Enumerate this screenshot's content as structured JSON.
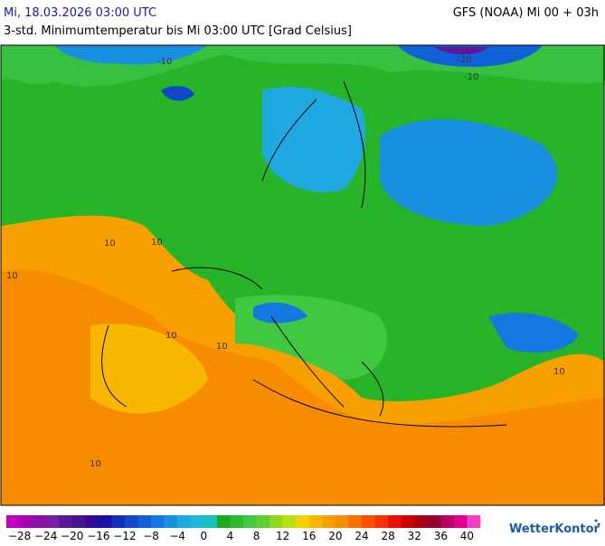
{
  "header": {
    "datetime": "Mi, 18.03.2026 03:00 UTC",
    "model": "GFS (NOAA) Mi 00 + 03h",
    "title": "3-std. Minimumtemperatur bis Mi 03:00 UTC [Grad Celsius]"
  },
  "map": {
    "contour_labels": [
      "-10",
      "-20",
      "-10",
      "10",
      "10",
      "10",
      "10",
      "10",
      "10",
      "10"
    ]
  },
  "legend": {
    "labels": [
      "−28",
      "−24",
      "−20",
      "−16",
      "−12",
      "−8",
      "−4",
      "0",
      "4",
      "8",
      "12",
      "16",
      "20",
      "24",
      "28",
      "32",
      "36",
      "40"
    ],
    "colors": [
      "#c000c0",
      "#a800b4",
      "#8c10a8",
      "#7420a0",
      "#5c1896",
      "#48148c",
      "#320c90",
      "#1c10a0",
      "#1030b8",
      "#1048c8",
      "#1060d8",
      "#1478e0",
      "#1890e0",
      "#20a8e0",
      "#20b8d8",
      "#18c0c0",
      "#20a820",
      "#30b830",
      "#40c840",
      "#60d030",
      "#90d820",
      "#b8e010",
      "#f8d000",
      "#f8b800",
      "#f8a000",
      "#f88c00",
      "#f87000",
      "#f85000",
      "#f83000",
      "#e81000",
      "#c80000",
      "#a80010",
      "#900030",
      "#b80060",
      "#e00090",
      "#f040c0"
    ]
  },
  "brand": "WetterKontor"
}
